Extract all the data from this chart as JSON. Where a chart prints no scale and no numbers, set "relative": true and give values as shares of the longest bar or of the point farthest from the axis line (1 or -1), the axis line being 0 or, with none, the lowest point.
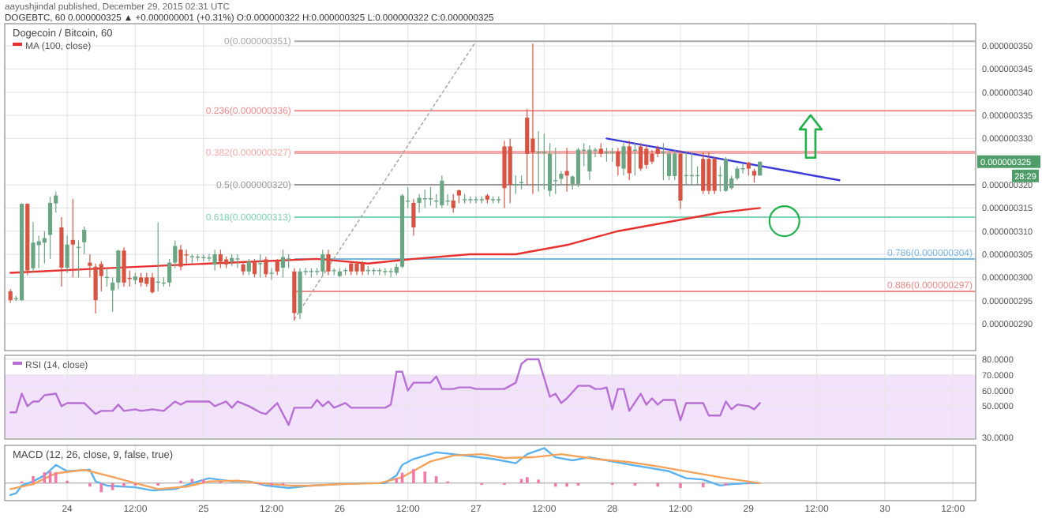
{
  "chart_data": [
    {
      "type": "candlestick",
      "title": "Dogecoin / Bitcoin, 60",
      "legend": "top left",
      "grid": true,
      "tick_labels": "y",
      "annotations": [
        "aayushjindal published, December 29, 2015 02:31 UTC",
        "DOGEBTC, 60  0.000000325 ▲ +0.000000001 (+0.31%)  O:0.000000322  H:0.000000325  L:0.000000322  C:0.000000325",
        "0.000000325",
        "28:29"
      ],
      "xlim": [
        "2015-12-23T13:00",
        "2015-12-30T16:00"
      ],
      "xticks": [
        {
          "value": "2015-12-24T00:00",
          "label": null
        },
        {
          "value": "2015-12-24T12:00",
          "label": null
        },
        {
          "value": "2015-12-25T00:00",
          "label": null
        },
        {
          "value": "2015-12-25T12:00",
          "label": null
        },
        {
          "value": "2015-12-26T00:00",
          "label": null
        },
        {
          "value": "2015-12-26T12:00",
          "label": null
        },
        {
          "value": "2015-12-27T00:00",
          "label": null
        },
        {
          "value": "2015-12-27T12:00",
          "label": null
        },
        {
          "value": "2015-12-28T00:00",
          "label": null
        },
        {
          "value": "2015-12-28T12:00",
          "label": null
        },
        {
          "value": "2015-12-29T00:00",
          "label": null
        },
        {
          "value": "2015-12-29T12:00",
          "label": null
        },
        {
          "value": "2015-12-30T00:00",
          "label": null
        },
        {
          "value": "2015-12-30T12:00",
          "label": null
        }
      ],
      "ylim": [
        2.842e-07,
        3.548e-07
      ],
      "yticks": [
        {
          "value": 2.9e-07,
          "label": "0.000000290"
        },
        {
          "value": 2.95e-07,
          "label": "0.000000295"
        },
        {
          "value": 3e-07,
          "label": "0.000000300"
        },
        {
          "value": 3.05e-07,
          "label": "0.000000305"
        },
        {
          "value": 3.1e-07,
          "label": "0.000000310"
        },
        {
          "value": 3.15e-07,
          "label": "0.000000315"
        },
        {
          "value": 3.2e-07,
          "label": "0.000000320"
        },
        {
          "value": 3.3e-07,
          "label": "0.000000330"
        },
        {
          "value": 3.35e-07,
          "label": "0.000000335"
        },
        {
          "value": 3.4e-07,
          "label": "0.000000340"
        },
        {
          "value": 3.45e-07,
          "label": "0.000000345"
        },
        {
          "value": 3.5e-07,
          "label": "0.000000350"
        }
      ],
      "ref_lines": [
        {
          "axis": "y",
          "value": 3.51e-07,
          "label": "0(0.000000351)",
          "color": "#a8a8a8"
        },
        {
          "axis": "y",
          "value": 3.36e-07,
          "label": "0.236(0.000000336)",
          "color": "#ef8a8a"
        },
        {
          "axis": "y",
          "value": 3.27e-07,
          "label": "0.382(0.000000327)",
          "color": "#f4aaaa"
        },
        {
          "axis": "y",
          "value": 3.2e-07,
          "label": "0.5(0.000000320)",
          "color": "#9a9a9a"
        },
        {
          "axis": "y",
          "value": 3.13e-07,
          "label": "0.618(0.000000313)",
          "color": "#7fd3b5"
        },
        {
          "axis": "y",
          "value": 3.04e-07,
          "label": "0.786(0.000000304)",
          "color": "#7ab6e0"
        },
        {
          "axis": "y",
          "value": 2.97e-07,
          "label": "0.886(0.000000297)",
          "color": "#ef8a8a"
        }
      ],
      "x": [
        "2015-12-23T14:00",
        "2015-12-23T15:00",
        "2015-12-23T16:00",
        "2015-12-23T17:00",
        "2015-12-23T18:00",
        "2015-12-23T19:00",
        "2015-12-23T20:00",
        "2015-12-23T21:00",
        "2015-12-23T22:00",
        "2015-12-23T23:00",
        "2015-12-24T00:00",
        "2015-12-24T01:00",
        "2015-12-24T02:00",
        "2015-12-24T03:00",
        "2015-12-24T04:00",
        "2015-12-24T05:00",
        "2015-12-24T06:00",
        "2015-12-24T07:00",
        "2015-12-24T08:00",
        "2015-12-24T09:00",
        "2015-12-24T10:00",
        "2015-12-24T11:00",
        "2015-12-24T12:00",
        "2015-12-24T13:00",
        "2015-12-24T14:00",
        "2015-12-24T15:00",
        "2015-12-24T16:00",
        "2015-12-24T17:00",
        "2015-12-24T18:00",
        "2015-12-24T19:00",
        "2015-12-24T20:00",
        "2015-12-24T21:00",
        "2015-12-24T22:00",
        "2015-12-24T23:00",
        "2015-12-25T00:00",
        "2015-12-25T01:00",
        "2015-12-25T02:00",
        "2015-12-25T03:00",
        "2015-12-25T04:00",
        "2015-12-25T05:00",
        "2015-12-25T06:00",
        "2015-12-25T07:00",
        "2015-12-25T08:00",
        "2015-12-25T09:00",
        "2015-12-25T10:00",
        "2015-12-25T11:00",
        "2015-12-25T12:00",
        "2015-12-25T13:00",
        "2015-12-25T14:00",
        "2015-12-25T15:00",
        "2015-12-25T16:00",
        "2015-12-25T17:00",
        "2015-12-25T18:00",
        "2015-12-25T19:00",
        "2015-12-25T20:00",
        "2015-12-25T21:00",
        "2015-12-25T22:00",
        "2015-12-25T23:00",
        "2015-12-26T00:00",
        "2015-12-26T01:00",
        "2015-12-26T02:00",
        "2015-12-26T03:00",
        "2015-12-26T04:00",
        "2015-12-26T05:00",
        "2015-12-26T06:00",
        "2015-12-26T07:00",
        "2015-12-26T08:00",
        "2015-12-26T09:00",
        "2015-12-26T10:00",
        "2015-12-26T11:00",
        "2015-12-26T12:00",
        "2015-12-26T13:00",
        "2015-12-26T14:00",
        "2015-12-26T15:00",
        "2015-12-26T16:00",
        "2015-12-26T17:00",
        "2015-12-26T18:00",
        "2015-12-26T19:00",
        "2015-12-26T20:00",
        "2015-12-26T21:00",
        "2015-12-26T22:00",
        "2015-12-26T23:00",
        "2015-12-27T00:00",
        "2015-12-27T01:00",
        "2015-12-27T02:00",
        "2015-12-27T03:00",
        "2015-12-27T04:00",
        "2015-12-27T05:00",
        "2015-12-27T06:00",
        "2015-12-27T07:00",
        "2015-12-27T08:00",
        "2015-12-27T09:00",
        "2015-12-27T10:00",
        "2015-12-27T11:00",
        "2015-12-27T12:00",
        "2015-12-27T13:00",
        "2015-12-27T14:00",
        "2015-12-27T15:00",
        "2015-12-27T16:00",
        "2015-12-27T17:00",
        "2015-12-27T18:00",
        "2015-12-27T19:00",
        "2015-12-27T20:00",
        "2015-12-27T21:00",
        "2015-12-27T22:00",
        "2015-12-27T23:00",
        "2015-12-28T00:00",
        "2015-12-28T01:00",
        "2015-12-28T02:00",
        "2015-12-28T03:00",
        "2015-12-28T04:00",
        "2015-12-28T05:00",
        "2015-12-28T06:00",
        "2015-12-28T07:00",
        "2015-12-28T08:00",
        "2015-12-28T09:00",
        "2015-12-28T10:00",
        "2015-12-28T11:00",
        "2015-12-28T12:00",
        "2015-12-28T13:00",
        "2015-12-28T14:00",
        "2015-12-28T15:00",
        "2015-12-28T16:00",
        "2015-12-28T17:00",
        "2015-12-28T18:00",
        "2015-12-28T19:00",
        "2015-12-28T20:00",
        "2015-12-28T21:00",
        "2015-12-28T22:00",
        "2015-12-28T23:00",
        "2015-12-29T00:00",
        "2015-12-29T01:00",
        "2015-12-29T02:00"
      ],
      "ohlc": [
        [
          2.97e-07,
          2.975e-07,
          2.945e-07,
          2.951e-07
        ],
        [
          2.953e-07,
          2.96e-07,
          2.949e-07,
          2.955e-07
        ],
        [
          2.951e-07,
          3.16e-07,
          2.949e-07,
          3.159e-07
        ],
        [
          3.159e-07,
          3.16e-07,
          3.005e-07,
          3.015e-07
        ],
        [
          3.02e-07,
          3.12e-07,
          3.01e-07,
          3.075e-07
        ],
        [
          3.07e-07,
          3.09e-07,
          3.02e-07,
          3.078e-07
        ],
        [
          3.075e-07,
          3.1e-07,
          3.03e-07,
          3.085e-07
        ],
        [
          3.092e-07,
          3.174e-07,
          3.04e-07,
          3.161e-07
        ],
        [
          3.16e-07,
          3.185e-07,
          3.14e-07,
          3.177e-07
        ],
        [
          3.108e-07,
          3.13e-07,
          2.98e-07,
          3.021e-07
        ],
        [
          3.021e-07,
          3.09e-07,
          3.01e-07,
          3.071e-07
        ],
        [
          3.081e-07,
          3.17e-07,
          3e-07,
          3.071e-07
        ],
        [
          3.065e-07,
          3.08e-07,
          3e-07,
          3.066e-07
        ],
        [
          3.076e-07,
          3.11e-07,
          3.05e-07,
          3.103e-07
        ],
        [
          3.032e-07,
          3.05e-07,
          3e-07,
          3.025e-07
        ],
        [
          3.023e-07,
          3.03e-07,
          2.922e-07,
          2.951e-07
        ],
        [
          3.029e-07,
          3.035e-07,
          2.97e-07,
          3.003e-07
        ],
        [
          3e-07,
          3.02e-07,
          2.98e-07,
          3.001e-07
        ],
        [
          2.972e-07,
          3e-07,
          2.926e-07,
          2.989e-07
        ],
        [
          2.989e-07,
          3.06e-07,
          2.975e-07,
          3.058e-07
        ],
        [
          3.058e-07,
          3.065e-07,
          2.98e-07,
          2.989e-07
        ],
        [
          2.999e-07,
          3.015e-07,
          2.98e-07,
          2.997e-07
        ],
        [
          2.994e-07,
          3.01e-07,
          2.985e-07,
          3.002e-07
        ],
        [
          3e-07,
          3.01e-07,
          2.98e-07,
          2.989e-07
        ],
        [
          3e-07,
          3.01e-07,
          2.98e-07,
          2.986e-07
        ],
        [
          3e-07,
          3.01e-07,
          2.965e-07,
          2.968e-07
        ],
        [
          2.99e-07,
          3.119e-07,
          2.97e-07,
          2.991e-07
        ],
        [
          2.988e-07,
          3e-07,
          2.98e-07,
          2.989e-07
        ],
        [
          2.989e-07,
          3.04e-07,
          2.98e-07,
          3.032e-07
        ],
        [
          3.032e-07,
          3.08e-07,
          3.02e-07,
          3.068e-07
        ],
        [
          3.06e-07,
          3.07e-07,
          3.015e-07,
          3.023e-07
        ],
        [
          3.05e-07,
          3.06e-07,
          3.03e-07,
          3.049e-07
        ],
        [
          3.045e-07,
          3.05e-07,
          3.03e-07,
          3.046e-07
        ],
        [
          3.045e-07,
          3.05e-07,
          3.035e-07,
          3.045e-07
        ],
        [
          3.043e-07,
          3.05e-07,
          3.035e-07,
          3.044e-07
        ],
        [
          3.043e-07,
          3.05e-07,
          3.035e-07,
          3.043e-07
        ],
        [
          3.028e-07,
          3.06e-07,
          3.015e-07,
          3.05e-07
        ],
        [
          3.05e-07,
          3.06e-07,
          3.02e-07,
          3.034e-07
        ],
        [
          3.039e-07,
          3.045e-07,
          3.02e-07,
          3.028e-07
        ],
        [
          3.034e-07,
          3.05e-07,
          3.025e-07,
          3.042e-07
        ],
        [
          3.04e-07,
          3.05e-07,
          3.02e-07,
          3.041e-07
        ],
        [
          3.028e-07,
          3.035e-07,
          3.005e-07,
          3.013e-07
        ],
        [
          3.013e-07,
          3.04e-07,
          3.005e-07,
          3.034e-07
        ],
        [
          3.034e-07,
          3.04e-07,
          3e-07,
          3.007e-07
        ],
        [
          3.03e-07,
          3.05e-07,
          3e-07,
          3.031e-07
        ],
        [
          3.039e-07,
          3.045e-07,
          3e-07,
          3.007e-07
        ],
        [
          3.009e-07,
          3.02e-07,
          2.995e-07,
          3.01e-07
        ],
        [
          3.036e-07,
          3.04e-07,
          3.005e-07,
          3.013e-07
        ],
        [
          3.021e-07,
          3.06e-07,
          3e-07,
          3.044e-07
        ],
        [
          3.04e-07,
          3.05e-07,
          3.02e-07,
          3.041e-07
        ],
        [
          3.013e-07,
          3.02e-07,
          2.907e-07,
          2.923e-07
        ],
        [
          2.923e-07,
          3.02e-07,
          2.91e-07,
          3.013e-07
        ],
        [
          3.013e-07,
          3.02e-07,
          3.005e-07,
          3.014e-07
        ],
        [
          3.013e-07,
          3.02e-07,
          3e-07,
          3.014e-07
        ],
        [
          3.013e-07,
          3.02e-07,
          3.005e-07,
          3.014e-07
        ],
        [
          3.013e-07,
          3.06e-07,
          3.005e-07,
          3.05e-07
        ],
        [
          3.05e-07,
          3.06e-07,
          3.005e-07,
          3.013e-07
        ],
        [
          3.015e-07,
          3.02e-07,
          3.005e-07,
          3.016e-07
        ],
        [
          3.003e-07,
          3.02e-07,
          3e-07,
          3.013e-07
        ],
        [
          3.015e-07,
          3.02e-07,
          3.005e-07,
          3.016e-07
        ],
        [
          3.03e-07,
          3.035e-07,
          3.005e-07,
          3.013e-07
        ],
        [
          3.03e-07,
          3.035e-07,
          3.005e-07,
          3.013e-07
        ],
        [
          3.03e-07,
          3.035e-07,
          3.005e-07,
          3.013e-07
        ],
        [
          3.015e-07,
          3.025e-07,
          3.005e-07,
          3.016e-07
        ],
        [
          3.015e-07,
          3.02e-07,
          3.005e-07,
          3.016e-07
        ],
        [
          3.015e-07,
          3.02e-07,
          3.005e-07,
          3.016e-07
        ],
        [
          3.013e-07,
          3.02e-07,
          3.005e-07,
          3.014e-07
        ],
        [
          3.013e-07,
          3.02e-07,
          3e-07,
          3.014e-07
        ],
        [
          3.01e-07,
          3.03e-07,
          3.005e-07,
          3.023e-07
        ],
        [
          3.023e-07,
          3.18e-07,
          3.02e-07,
          3.177e-07
        ],
        [
          3.165e-07,
          3.195e-07,
          3.15e-07,
          3.166e-07
        ],
        [
          3.161e-07,
          3.17e-07,
          3.09e-07,
          3.108e-07
        ],
        [
          3.161e-07,
          3.18e-07,
          3.14e-07,
          3.172e-07
        ],
        [
          3.17e-07,
          3.19e-07,
          3.15e-07,
          3.171e-07
        ],
        [
          3.17e-07,
          3.195e-07,
          3.155e-07,
          3.171e-07
        ],
        [
          3.165e-07,
          3.18e-07,
          3.15e-07,
          3.166e-07
        ],
        [
          3.156e-07,
          3.22e-07,
          3.15e-07,
          3.209e-07
        ],
        [
          3.165e-07,
          3.18e-07,
          3.155e-07,
          3.166e-07
        ],
        [
          3.166e-07,
          3.18e-07,
          3.14e-07,
          3.15e-07
        ],
        [
          3.188e-07,
          3.19e-07,
          3.16e-07,
          3.177e-07
        ],
        [
          3.168e-07,
          3.18e-07,
          3.16e-07,
          3.169e-07
        ],
        [
          3.168e-07,
          3.175e-07,
          3.16e-07,
          3.169e-07
        ],
        [
          3.168e-07,
          3.175e-07,
          3.16e-07,
          3.169e-07
        ],
        [
          3.168e-07,
          3.175e-07,
          3.16e-07,
          3.169e-07
        ],
        [
          3.177e-07,
          3.18e-07,
          3.16e-07,
          3.168e-07
        ],
        [
          3.168e-07,
          3.175e-07,
          3.16e-07,
          3.169e-07
        ],
        [
          3.168e-07,
          3.175e-07,
          3.16e-07,
          3.169e-07
        ],
        [
          3.283e-07,
          3.295e-07,
          3.15e-07,
          3.193e-07
        ],
        [
          3.283e-07,
          3.3e-07,
          3.16e-07,
          3.2e-07
        ],
        [
          3.2e-07,
          3.22e-07,
          3.18e-07,
          3.201e-07
        ],
        [
          3.205e-07,
          3.22e-07,
          3.19e-07,
          3.206e-07
        ],
        [
          3.345e-07,
          3.364e-07,
          3.2e-07,
          3.267e-07
        ],
        [
          3.3e-07,
          3.505e-07,
          3.18e-07,
          3.27e-07
        ],
        [
          3.27e-07,
          3.316e-07,
          3.185e-07,
          3.271e-07
        ],
        [
          3.27e-07,
          3.31e-07,
          3.19e-07,
          3.271e-07
        ],
        [
          3.187e-07,
          3.29e-07,
          3.175e-07,
          3.267e-07
        ],
        [
          3.209e-07,
          3.28e-07,
          3.18e-07,
          3.21e-07
        ],
        [
          3.213e-07,
          3.23e-07,
          3.2e-07,
          3.224e-07
        ],
        [
          3.23e-07,
          3.28e-07,
          3.185e-07,
          3.22e-07
        ],
        [
          3.202e-07,
          3.22e-07,
          3.19e-07,
          3.218e-07
        ],
        [
          3.202e-07,
          3.28e-07,
          3.195e-07,
          3.276e-07
        ],
        [
          3.275e-07,
          3.29e-07,
          3.24e-07,
          3.276e-07
        ],
        [
          3.229e-07,
          3.285e-07,
          3.21e-07,
          3.276e-07
        ],
        [
          3.275e-07,
          3.28e-07,
          3.26e-07,
          3.276e-07
        ],
        [
          3.278e-07,
          3.29e-07,
          3.26e-07,
          3.267e-07
        ],
        [
          3.27e-07,
          3.28e-07,
          3.25e-07,
          3.271e-07
        ],
        [
          3.27e-07,
          3.28e-07,
          3.25e-07,
          3.271e-07
        ],
        [
          3.272e-07,
          3.28e-07,
          3.22e-07,
          3.24e-07
        ],
        [
          3.235e-07,
          3.29e-07,
          3.22e-07,
          3.283e-07
        ],
        [
          3.283e-07,
          3.295e-07,
          3.21e-07,
          3.225e-07
        ],
        [
          3.275e-07,
          3.29e-07,
          3.22e-07,
          3.276e-07
        ],
        [
          3.283e-07,
          3.29e-07,
          3.23e-07,
          3.235e-07
        ],
        [
          3.278e-07,
          3.285e-07,
          3.235e-07,
          3.243e-07
        ],
        [
          3.267e-07,
          3.275e-07,
          3.245e-07,
          3.25e-07
        ],
        [
          3.278e-07,
          3.285e-07,
          3.26e-07,
          3.267e-07
        ],
        [
          3.27e-07,
          3.29e-07,
          3.21e-07,
          3.271e-07
        ],
        [
          3.219e-07,
          3.275e-07,
          3.21e-07,
          3.267e-07
        ],
        [
          3.219e-07,
          3.275e-07,
          3.21e-07,
          3.267e-07
        ],
        [
          3.267e-07,
          3.275e-07,
          3.148e-07,
          3.166e-07
        ],
        [
          3.22e-07,
          3.27e-07,
          3.2e-07,
          3.221e-07
        ],
        [
          3.22e-07,
          3.27e-07,
          3.2e-07,
          3.221e-07
        ],
        [
          3.22e-07,
          3.24e-07,
          3.2e-07,
          3.221e-07
        ],
        [
          3.256e-07,
          3.27e-07,
          3.18e-07,
          3.187e-07
        ],
        [
          3.256e-07,
          3.27e-07,
          3.18e-07,
          3.187e-07
        ],
        [
          3.256e-07,
          3.26e-07,
          3.18e-07,
          3.187e-07
        ],
        [
          3.22e-07,
          3.24e-07,
          3.185e-07,
          3.221e-07
        ],
        [
          3.187e-07,
          3.26e-07,
          3.185e-07,
          3.256e-07
        ],
        [
          3.193e-07,
          3.22e-07,
          3.19e-07,
          3.214e-07
        ],
        [
          3.214e-07,
          3.24e-07,
          3.21e-07,
          3.235e-07
        ],
        [
          3.235e-07,
          3.245e-07,
          3.225e-07,
          3.236e-07
        ],
        [
          3.248e-07,
          3.25e-07,
          3.22e-07,
          3.235e-07
        ],
        [
          3.23e-07,
          3.235e-07,
          3.205e-07,
          3.22e-07
        ],
        [
          3.22e-07,
          3.25e-07,
          3.22e-07,
          3.25e-07
        ]
      ],
      "series": [
        {
          "name": "MA (100, close)",
          "type": "line",
          "color": "#e8312f",
          "x": [
            "2015-12-23T14:00",
            "2015-12-24T07:00",
            "2015-12-25T01:00",
            "2015-12-25T20:00",
            "2015-12-26T05:00",
            "2015-12-26T13:00",
            "2015-12-26T23:00",
            "2015-12-27T07:00",
            "2015-12-27T16:00",
            "2015-12-28T01:00",
            "2015-12-28T10:00",
            "2015-12-28T19:00",
            "2015-12-29T02:00"
          ],
          "values": [
            3.01e-07,
            3.02e-07,
            3.03e-07,
            3.04e-07,
            3.03e-07,
            3.04e-07,
            3.05e-07,
            3.05e-07,
            3.07e-07,
            3.1e-07,
            3.12e-07,
            3.14e-07,
            3.15e-07
          ]
        },
        {
          "type": "line",
          "color": "#3a3ad8",
          "x": [
            "2015-12-27T23:00",
            "2015-12-29T16:00"
          ],
          "values": [
            3.3e-07,
            3.21e-07
          ]
        },
        {
          "type": "line",
          "color": "#aaaaaa",
          "line_style": "dotted",
          "x": [
            "2015-12-25T16:00",
            "2015-12-27T00:00"
          ],
          "values": [
            2.91e-07,
            3.51e-07
          ]
        }
      ]
    },
    {
      "type": "line",
      "legend": "top left",
      "grid": true,
      "tick_labels": "y",
      "xlim": [
        "2015-12-23T13:00",
        "2015-12-30T16:00"
      ],
      "xticks": [
        {
          "value": "2015-12-24T00:00",
          "label": null
        },
        {
          "value": "2015-12-24T12:00",
          "label": null
        },
        {
          "value": "2015-12-25T00:00",
          "label": null
        },
        {
          "value": "2015-12-25T12:00",
          "label": null
        },
        {
          "value": "2015-12-26T00:00",
          "label": null
        },
        {
          "value": "2015-12-26T12:00",
          "label": null
        },
        {
          "value": "2015-12-27T00:00",
          "label": null
        },
        {
          "value": "2015-12-27T12:00",
          "label": null
        },
        {
          "value": "2015-12-28T00:00",
          "label": null
        },
        {
          "value": "2015-12-28T12:00",
          "label": null
        },
        {
          "value": "2015-12-29T00:00",
          "label": null
        },
        {
          "value": "2015-12-29T12:00",
          "label": null
        },
        {
          "value": "2015-12-30T00:00",
          "label": null
        },
        {
          "value": "2015-12-30T12:00",
          "label": null
        }
      ],
      "ylim": [
        29,
        82.5
      ],
      "yticks": [
        {
          "value": 30,
          "label": "30.0000"
        },
        {
          "value": 50,
          "label": "50.0000"
        },
        {
          "value": 60,
          "label": "60.0000"
        },
        {
          "value": 70,
          "label": "70.0000"
        },
        {
          "value": 80,
          "label": "80.0000"
        }
      ],
      "bands": [
        {
          "axis": "y",
          "from": 30,
          "to": 70,
          "color": "#f3e2fb"
        }
      ],
      "series": [
        {
          "name": "RSI (14, close)",
          "color": "#b86fd4",
          "x": [
            "2015-12-23T14:00",
            "2015-12-23T15:00",
            "2015-12-23T16:00",
            "2015-12-23T17:00",
            "2015-12-23T18:00",
            "2015-12-23T19:00",
            "2015-12-23T20:00",
            "2015-12-23T22:00",
            "2015-12-23T23:00",
            "2015-12-24T00:00",
            "2015-12-24T03:00",
            "2015-12-24T05:00",
            "2015-12-24T06:00",
            "2015-12-24T08:00",
            "2015-12-24T09:00",
            "2015-12-24T10:00",
            "2015-12-24T12:00",
            "2015-12-24T13:00",
            "2015-12-24T15:00",
            "2015-12-24T17:00",
            "2015-12-24T18:00",
            "2015-12-24T19:00",
            "2015-12-24T20:00",
            "2015-12-24T21:00",
            "2015-12-25T01:00",
            "2015-12-25T02:00",
            "2015-12-25T04:00",
            "2015-12-25T05:00",
            "2015-12-25T06:00",
            "2015-12-25T08:00",
            "2015-12-25T10:00",
            "2015-12-25T11:00",
            "2015-12-25T13:00",
            "2015-12-25T15:00",
            "2015-12-25T16:00",
            "2015-12-25T19:00",
            "2015-12-25T20:00",
            "2015-12-25T21:00",
            "2015-12-25T22:00",
            "2015-12-25T23:00",
            "2015-12-26T01:00",
            "2015-12-26T02:00",
            "2015-12-26T08:00",
            "2015-12-26T09:00",
            "2015-12-26T10:00",
            "2015-12-26T11:00",
            "2015-12-26T12:00",
            "2015-12-26T13:00",
            "2015-12-26T16:00",
            "2015-12-26T17:00",
            "2015-12-26T18:00",
            "2015-12-26T20:00",
            "2015-12-26T21:00",
            "2015-12-26T23:00",
            "2015-12-27T00:00",
            "2015-12-27T05:00",
            "2015-12-27T07:00",
            "2015-12-27T08:00",
            "2015-12-27T09:00",
            "2015-12-27T11:00",
            "2015-12-27T13:00",
            "2015-12-27T14:00",
            "2015-12-27T15:00",
            "2015-12-27T16:00",
            "2015-12-27T18:00",
            "2015-12-27T20:00",
            "2015-12-27T21:00",
            "2015-12-27T22:00",
            "2015-12-27T23:00",
            "2015-12-28T00:00",
            "2015-12-28T01:00",
            "2015-12-28T02:00",
            "2015-12-28T03:00",
            "2015-12-28T05:00",
            "2015-12-28T06:00",
            "2015-12-28T07:00",
            "2015-12-28T08:00",
            "2015-12-28T09:00",
            "2015-12-28T11:00",
            "2015-12-28T12:00",
            "2015-12-28T13:00",
            "2015-12-28T16:00",
            "2015-12-28T17:00",
            "2015-12-28T19:00",
            "2015-12-28T20:00",
            "2015-12-28T21:00",
            "2015-12-28T22:00",
            "2015-12-29T00:00",
            "2015-12-29T01:00",
            "2015-12-29T02:00"
          ],
          "values": [
            46,
            46,
            58,
            50,
            53,
            53,
            57,
            58,
            50,
            52,
            52,
            45,
            47,
            47,
            51,
            47,
            48,
            47,
            48,
            47,
            50,
            53,
            51,
            53,
            53,
            50,
            53,
            49,
            53,
            50,
            46,
            45,
            52,
            38,
            49,
            49,
            54,
            50,
            53,
            49,
            52,
            49,
            49,
            51,
            72,
            72,
            60,
            65,
            65,
            69,
            61,
            61,
            62,
            62,
            61,
            61,
            65,
            77,
            80,
            80,
            56,
            58,
            52,
            55,
            63,
            63,
            61,
            61,
            62,
            48,
            61,
            61,
            47,
            58,
            51,
            55,
            51,
            54,
            54,
            41,
            52,
            52,
            44,
            44,
            53,
            48,
            51,
            50,
            48,
            52
          ]
        }
      ]
    },
    {
      "type": "line",
      "title": "MACD (12, 26, close, 9, false, true)",
      "relative": true,
      "grid": "x",
      "tick_labels": "x",
      "xlim": [
        "2015-12-23T13:00",
        "2015-12-30T16:00"
      ],
      "xticks": [
        {
          "value": "2015-12-24T00:00",
          "label": "24"
        },
        {
          "value": "2015-12-24T12:00",
          "label": "12:00"
        },
        {
          "value": "2015-12-25T00:00",
          "label": "25"
        },
        {
          "value": "2015-12-25T12:00",
          "label": "12:00"
        },
        {
          "value": "2015-12-26T00:00",
          "label": "26"
        },
        {
          "value": "2015-12-26T12:00",
          "label": "12:00"
        },
        {
          "value": "2015-12-27T00:00",
          "label": "27"
        },
        {
          "value": "2015-12-27T12:00",
          "label": "12:00"
        },
        {
          "value": "2015-12-28T00:00",
          "label": "28"
        },
        {
          "value": "2015-12-28T12:00",
          "label": "12:00"
        },
        {
          "value": "2015-12-29T00:00",
          "label": "29"
        },
        {
          "value": "2015-12-29T12:00",
          "label": "12:00"
        },
        {
          "value": "2015-12-30T00:00",
          "label": "30"
        },
        {
          "value": "2015-12-30T12:00",
          "label": "12:00"
        }
      ],
      "series": [
        {
          "type": "bar",
          "color": "#f07aa8",
          "x": [
            "2015-12-23T16:00",
            "2015-12-23T18:00",
            "2015-12-23T20:00",
            "2015-12-23T21:00",
            "2015-12-23T22:00",
            "2015-12-24T00:00",
            "2015-12-24T04:00",
            "2015-12-24T06:00",
            "2015-12-24T08:00",
            "2015-12-24T10:00",
            "2015-12-24T12:00",
            "2015-12-24T16:00",
            "2015-12-24T20:00",
            "2015-12-24T22:00",
            "2015-12-25T00:00",
            "2015-12-25T03:00",
            "2015-12-25T10:00",
            "2015-12-25T12:00",
            "2015-12-25T14:00",
            "2015-12-26T10:00",
            "2015-12-26T11:00",
            "2015-12-26T13:00",
            "2015-12-26T15:00",
            "2015-12-26T17:00",
            "2015-12-26T19:00",
            "2015-12-27T01:00",
            "2015-12-27T05:00",
            "2015-12-27T08:00",
            "2015-12-27T09:00",
            "2015-12-27T11:00",
            "2015-12-27T14:00",
            "2015-12-27T16:00",
            "2015-12-27T18:00",
            "2015-12-28T00:00",
            "2015-12-28T04:00",
            "2015-12-28T08:00",
            "2015-12-28T12:00",
            "2015-12-28T16:00",
            "2015-12-28T20:00",
            "2015-12-29T00:00"
          ],
          "values": [
            0.05,
            0.2,
            0.31,
            0.34,
            0.31,
            0.07,
            -0.1,
            -0.26,
            -0.2,
            -0.1,
            -0.07,
            -0.07,
            0.07,
            0.12,
            0.1,
            0.05,
            -0.05,
            -0.07,
            -0.05,
            0.14,
            0.3,
            0.4,
            0.33,
            0.2,
            0.05,
            -0.05,
            -0.05,
            0.12,
            0.17,
            0.1,
            -0.1,
            -0.1,
            -0.07,
            -0.05,
            -0.07,
            -0.1,
            -0.14,
            -0.12,
            -0.07,
            -0.03
          ]
        },
        {
          "color": "#5ab2ee",
          "x": [
            "2015-12-23T14:00",
            "2015-12-23T15:00",
            "2015-12-23T16:00",
            "2015-12-23T18:00",
            "2015-12-23T20:00",
            "2015-12-23T22:00",
            "2015-12-24T00:00",
            "2015-12-24T04:00",
            "2015-12-24T05:00",
            "2015-12-24T07:00",
            "2015-12-24T12:00",
            "2015-12-24T15:00",
            "2015-12-24T19:00",
            "2015-12-24T22:00",
            "2015-12-25T01:00",
            "2015-12-25T05:00",
            "2015-12-25T08:00",
            "2015-12-25T11:00",
            "2015-12-25T15:00",
            "2015-12-25T19:00",
            "2015-12-26T00:00",
            "2015-12-26T04:00",
            "2015-12-26T08:00",
            "2015-12-26T10:00",
            "2015-12-26T11:00",
            "2015-12-26T13:00",
            "2015-12-26T17:00",
            "2015-12-26T20:00",
            "2015-12-27T03:00",
            "2015-12-27T07:00",
            "2015-12-27T09:00",
            "2015-12-27T12:00",
            "2015-12-27T14:00",
            "2015-12-27T17:00",
            "2015-12-27T20:00",
            "2015-12-27T23:00",
            "2015-12-28T03:00",
            "2015-12-28T06:00",
            "2015-12-28T10:00",
            "2015-12-28T13:00",
            "2015-12-28T16:00",
            "2015-12-28T19:00",
            "2015-12-28T21:00",
            "2015-12-29T00:00",
            "2015-12-29T02:00"
          ],
          "values": [
            -0.34,
            -0.29,
            -0.07,
            0.05,
            0.22,
            0.52,
            0.34,
            0.38,
            0.05,
            -0.07,
            -0.12,
            -0.21,
            -0.17,
            0,
            0.14,
            0.05,
            0.05,
            -0.07,
            -0.14,
            -0.07,
            -0.03,
            0,
            0,
            0.22,
            0.52,
            0.69,
            0.88,
            0.83,
            0.69,
            0.57,
            0.83,
            1,
            0.74,
            0.65,
            0.74,
            0.65,
            0.53,
            0.45,
            0.34,
            0.14,
            0.1,
            -0.07,
            -0.03,
            0,
            0
          ]
        },
        {
          "color": "#f5a35a",
          "x": [
            "2015-12-23T14:00",
            "2015-12-23T18:00",
            "2015-12-23T22:00",
            "2015-12-24T03:00",
            "2015-12-24T07:00",
            "2015-12-24T12:00",
            "2015-12-24T16:00",
            "2015-12-24T21:00",
            "2015-12-25T01:00",
            "2015-12-25T06:00",
            "2015-12-25T10:00",
            "2015-12-25T15:00",
            "2015-12-25T19:00",
            "2015-12-26T00:00",
            "2015-12-26T07:00",
            "2015-12-26T11:00",
            "2015-12-26T16:00",
            "2015-12-26T20:00",
            "2015-12-27T01:00",
            "2015-12-27T05:00",
            "2015-12-27T10:00",
            "2015-12-27T15:00",
            "2015-12-27T21:00",
            "2015-12-28T03:00",
            "2015-12-28T08:00",
            "2015-12-28T14:00",
            "2015-12-28T20:00",
            "2015-12-29T02:00"
          ],
          "values": [
            -0.17,
            -0.03,
            0.28,
            0.38,
            0.22,
            0,
            -0.17,
            -0.1,
            0.05,
            0.07,
            0,
            -0.07,
            -0.07,
            -0.03,
            0,
            0.17,
            0.62,
            0.79,
            0.83,
            0.72,
            0.74,
            0.83,
            0.69,
            0.6,
            0.48,
            0.31,
            0.14,
            0
          ]
        }
      ]
    }
  ]
}
